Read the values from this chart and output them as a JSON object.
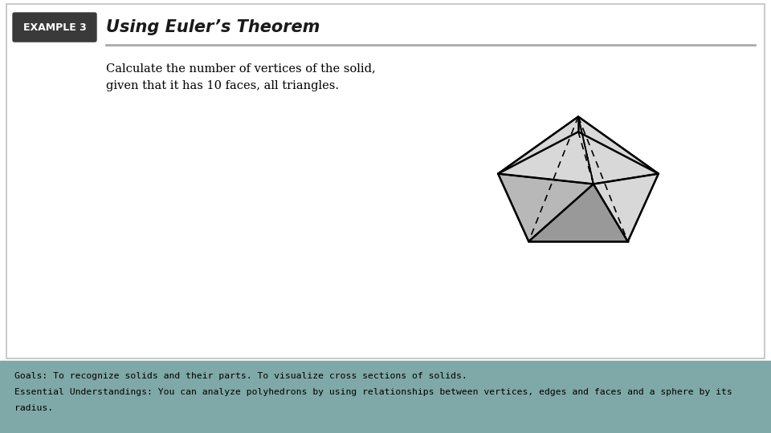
{
  "bg_color": "#ffffff",
  "footer_bg_color": "#7fa8a8",
  "footer_text_line1": "Goals: To recognize solids and their parts. To visualize cross sections of solids.",
  "footer_text_line2": "Essential Understandings: You can analyze polyhedrons by using relationships between vertices, edges and faces and a sphere by its",
  "footer_text_line3": "radius.",
  "example_label": "EXAMPLE 3",
  "example_label_bg": "#3a3a3a",
  "example_label_fg": "#ffffff",
  "title_text": "Using Euler’s Theorem",
  "title_color": "#1a1a1a",
  "body_text_line1": "Calculate the number of vertices of the solid,",
  "body_text_line2": "given that it has 10 faces, all triangles.",
  "separator_color": "#aaaaaa",
  "solid_color_white": "#f5f5f5",
  "solid_color_light": "#d8d8d8",
  "solid_color_mid": "#b8b8b8",
  "solid_color_dark": "#999999"
}
